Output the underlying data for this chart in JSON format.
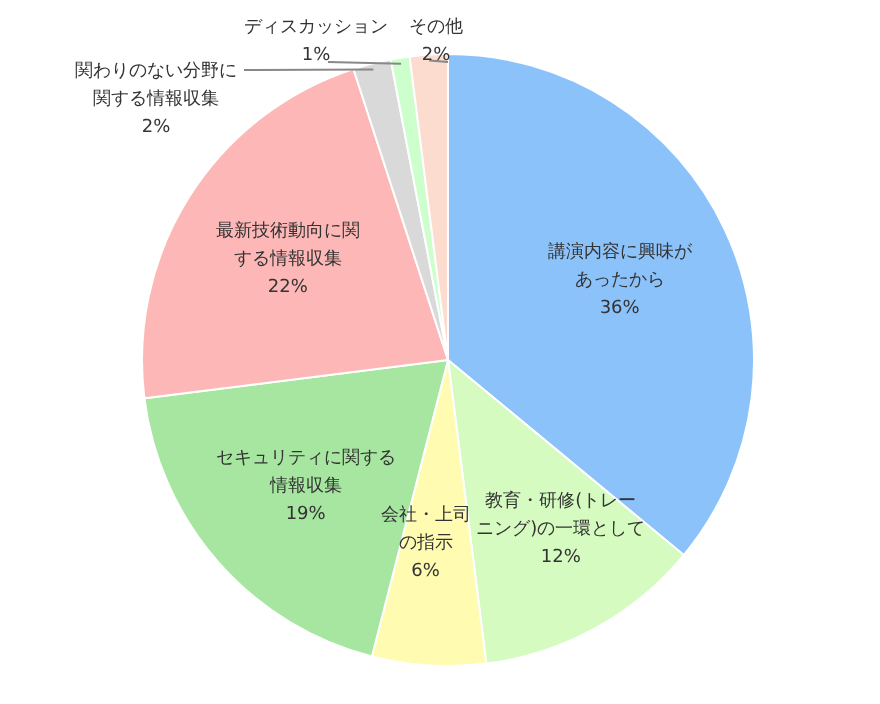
{
  "chart_data": {
    "type": "pie",
    "categories": [
      "講演内容に興味があったから",
      "教育・研修(トレーニング)の一環として",
      "会社・上司の指示",
      "セキュリティに関する情報収集",
      "最新技術動向に関する情報収集",
      "関わりのない分野に関する情報収集",
      "ディスカッション",
      "その他"
    ],
    "values": [
      36,
      12,
      6,
      19,
      22,
      2,
      1,
      2
    ],
    "value_labels": [
      "36%",
      "12%",
      "6%",
      "19%",
      "22%",
      "2%",
      "1%",
      "2%"
    ],
    "colors": [
      "#8cc2fa",
      "#d5fbc0",
      "#fffbb0",
      "#a6e6a0",
      "#fdb7b7",
      "#d9d9d9",
      "#ccffcc",
      "#fbdccf"
    ]
  }
}
